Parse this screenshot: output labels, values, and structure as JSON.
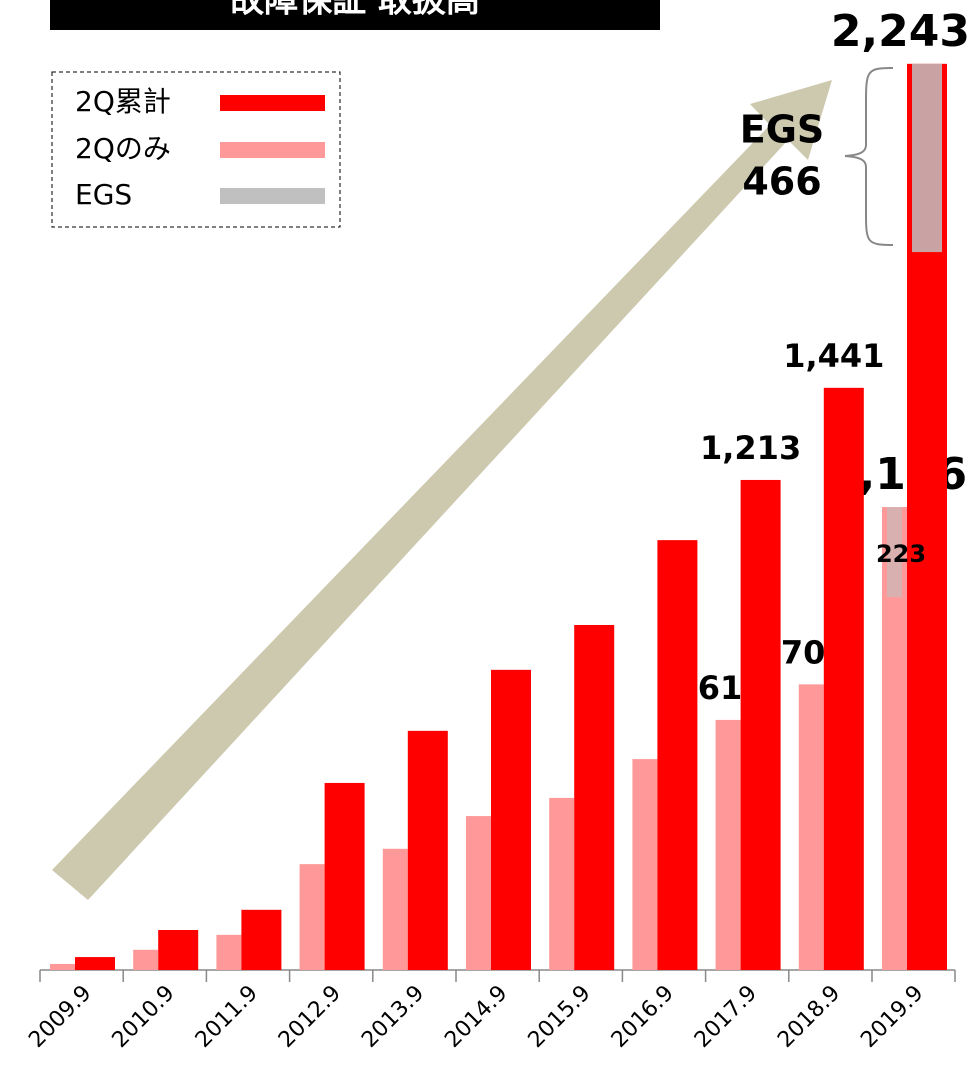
{
  "chart_data": {
    "type": "bar",
    "title": "故障保証 取扱高",
    "categories": [
      "2009.9",
      "2010.9",
      "2011.9",
      "2012.9",
      "2013.9",
      "2014.9",
      "2015.9",
      "2016.9",
      "2017.9",
      "2018.9",
      "2019.9"
    ],
    "series": [
      {
        "name": "2Qのみ",
        "color": "#ff9999",
        "values": [
          15,
          50,
          87,
          262,
          300,
          381,
          426,
          522,
          619,
          707,
          1146
        ],
        "value_labels": [
          null,
          null,
          null,
          null,
          null,
          null,
          null,
          null,
          "619",
          "707",
          "1,146"
        ]
      },
      {
        "name": "2Q累計",
        "color": "#ff0000",
        "values": [
          32,
          99,
          149,
          463,
          592,
          743,
          854,
          1064,
          1213,
          1441,
          2243
        ],
        "value_labels": [
          null,
          null,
          null,
          null,
          null,
          null,
          null,
          null,
          "1,213",
          "1,441",
          "2,243"
        ]
      }
    ],
    "egs": {
      "name": "EGS",
      "color": "#c0c0c0",
      "cumulative": 466,
      "quarter": 223
    },
    "ylim": [
      0,
      2400
    ]
  }
}
